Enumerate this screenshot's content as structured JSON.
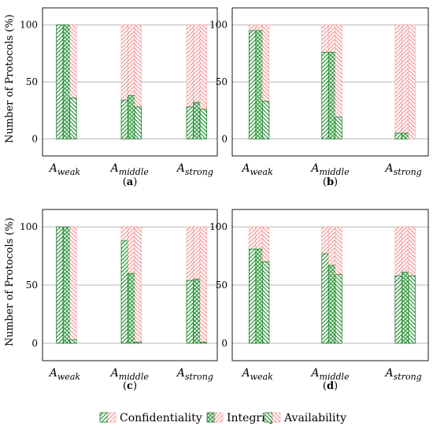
{
  "figure": {
    "ylabel": "Number of Protocols (%)",
    "legend": {
      "items": [
        {
          "label": "Confidentiality",
          "pattern": "diag-right"
        },
        {
          "label": "Integrity",
          "pattern": "crosshatch"
        },
        {
          "label": "Availability",
          "pattern": "diag-left"
        }
      ],
      "placement": "bottom-center"
    }
  },
  "colors": {
    "green_fill": "#2e9a3c",
    "green_stroke": "#1d7a2a",
    "red_fill": "#f28c8c",
    "red_stroke": "#f5a0a0",
    "grid": "#b5b5b5"
  },
  "chart_data": [
    {
      "type": "bar",
      "stacked_to": 100,
      "caption": "(a)",
      "categories": [
        {
          "base": "A",
          "sub": "weak"
        },
        {
          "base": "A",
          "sub": "middle"
        },
        {
          "base": "A",
          "sub": "strong"
        }
      ],
      "series": [
        {
          "name": "Confidentiality",
          "values": [
            100,
            34,
            28
          ]
        },
        {
          "name": "Integrity",
          "values": [
            100,
            38,
            32
          ]
        },
        {
          "name": "Availability",
          "values": [
            36,
            28,
            26
          ]
        }
      ],
      "yticks": [
        0,
        50,
        100
      ],
      "ylim": [
        -15,
        115
      ],
      "grid": "horizontal"
    },
    {
      "type": "bar",
      "stacked_to": 100,
      "caption": "(b)",
      "categories": [
        {
          "base": "A",
          "sub": "weak"
        },
        {
          "base": "A",
          "sub": "middle"
        },
        {
          "base": "A",
          "sub": "strong"
        }
      ],
      "series": [
        {
          "name": "Confidentiality",
          "values": [
            95,
            76,
            5
          ]
        },
        {
          "name": "Integrity",
          "values": [
            95,
            76,
            5
          ]
        },
        {
          "name": "Availability",
          "values": [
            33,
            19,
            0
          ]
        }
      ],
      "yticks": [
        0,
        50,
        100
      ],
      "ylim": [
        -15,
        115
      ],
      "grid": "horizontal"
    },
    {
      "type": "bar",
      "stacked_to": 100,
      "caption": "(c)",
      "categories": [
        {
          "base": "A",
          "sub": "weak"
        },
        {
          "base": "A",
          "sub": "middle"
        },
        {
          "base": "A",
          "sub": "strong"
        }
      ],
      "series": [
        {
          "name": "Confidentiality",
          "values": [
            100,
            88,
            54
          ]
        },
        {
          "name": "Integrity",
          "values": [
            100,
            60,
            55
          ]
        },
        {
          "name": "Availability",
          "values": [
            3,
            1,
            1
          ]
        }
      ],
      "yticks": [
        0,
        50,
        100
      ],
      "ylim": [
        -15,
        115
      ],
      "grid": "horizontal"
    },
    {
      "type": "bar",
      "stacked_to": 100,
      "caption": "(d)",
      "categories": [
        {
          "base": "A",
          "sub": "weak"
        },
        {
          "base": "A",
          "sub": "middle"
        },
        {
          "base": "A",
          "sub": "strong"
        }
      ],
      "series": [
        {
          "name": "Confidentiality",
          "values": [
            81,
            77,
            58
          ]
        },
        {
          "name": "Integrity",
          "values": [
            81,
            67,
            61
          ]
        },
        {
          "name": "Availability",
          "values": [
            70,
            59,
            58
          ]
        }
      ],
      "yticks": [
        0,
        50,
        100
      ],
      "ylim": [
        -15,
        115
      ],
      "grid": "horizontal"
    }
  ]
}
